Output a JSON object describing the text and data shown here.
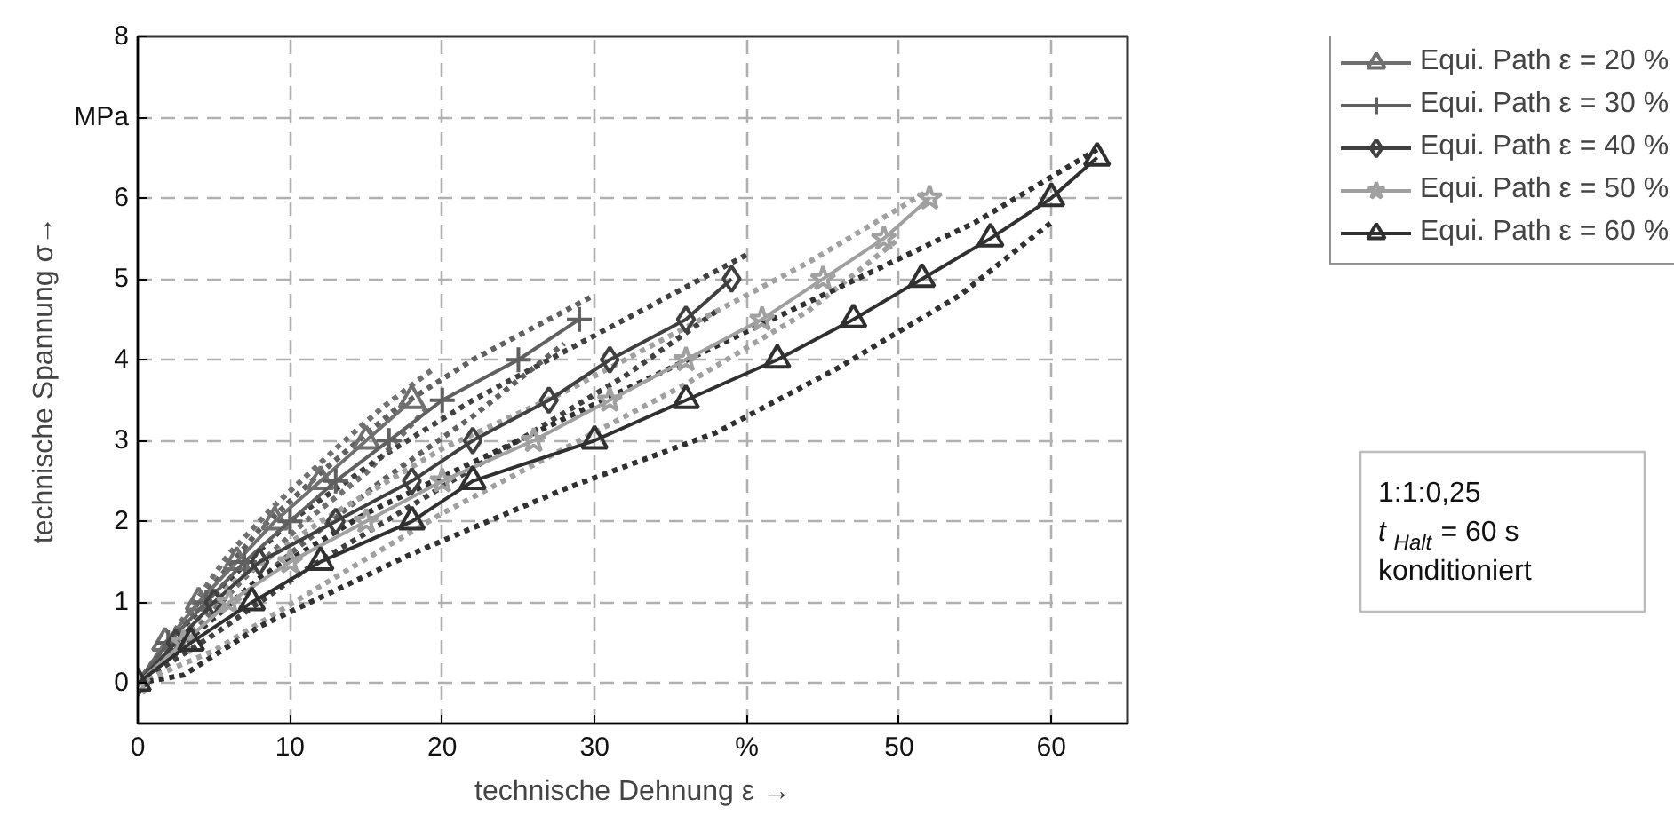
{
  "chart_data": {
    "type": "line",
    "xlabel": "technische Dehnung ε →",
    "ylabel": "technische Spannung σ→",
    "xlim": [
      0,
      65
    ],
    "ylim": [
      -0.5,
      8
    ],
    "xticks": [
      0,
      10,
      20,
      30,
      {
        "value": 40,
        "label": "%"
      },
      50,
      60
    ],
    "yticks": [
      0,
      1,
      2,
      3,
      4,
      5,
      6,
      {
        "value": 7,
        "label": "MPa"
      },
      8
    ],
    "grid": true,
    "legend": "top right",
    "annotations": [
      "1:1:0,25",
      "t$_{Halt}$ = 60 s",
      "konditioniert"
    ],
    "series": [
      {
        "color": "#707070",
        "line_style": "dotted",
        "marker": "none",
        "x": [
          0,
          3,
          6,
          9,
          13,
          16,
          19.5
        ],
        "values": [
          0,
          0.8,
          1.6,
          2.2,
          2.9,
          3.4,
          3.9
        ]
      },
      {
        "color": "#707070",
        "line_style": "dotted",
        "marker": "none",
        "x": [
          0,
          4,
          7,
          11,
          15,
          19
        ],
        "values": [
          0,
          0.7,
          1.3,
          2,
          2.6,
          3.4
        ]
      },
      {
        "color": "#606060",
        "line_style": "dotted",
        "marker": "none",
        "x": [
          0,
          4,
          8,
          12,
          17,
          22,
          27,
          30
        ],
        "values": [
          0,
          1,
          1.9,
          2.6,
          3.4,
          4,
          4.5,
          4.8
        ]
      },
      {
        "color": "#606060",
        "line_style": "dotted",
        "marker": "none",
        "x": [
          0,
          5,
          10,
          16,
          22,
          28
        ],
        "values": [
          0,
          0.8,
          1.6,
          2.5,
          3.3,
          4.2
        ]
      },
      {
        "color": "#404040",
        "line_style": "dotted",
        "marker": "none",
        "x": [
          0,
          5,
          10,
          16,
          22,
          29,
          35,
          40
        ],
        "values": [
          0,
          1.1,
          2,
          2.8,
          3.5,
          4.2,
          4.8,
          5.3
        ]
      },
      {
        "color": "#404040",
        "line_style": "dotted",
        "marker": "none",
        "x": [
          0,
          5,
          11,
          18,
          25,
          32,
          38
        ],
        "values": [
          0,
          0.6,
          1.4,
          2.2,
          3,
          3.8,
          4.6
        ]
      },
      {
        "color": "#a0a0a0",
        "line_style": "dotted",
        "marker": "none",
        "x": [
          0,
          6,
          12,
          20,
          28,
          36,
          44,
          52
        ],
        "values": [
          0,
          1.2,
          2,
          2.9,
          3.6,
          4.4,
          5.2,
          6.1
        ]
      },
      {
        "color": "#a0a0a0",
        "line_style": "dotted",
        "marker": "none",
        "x": [
          0,
          5,
          12,
          20,
          28,
          36,
          44,
          50
        ],
        "values": [
          0,
          0.4,
          1.2,
          2.1,
          2.9,
          3.7,
          4.6,
          5.5
        ]
      },
      {
        "color": "#303030",
        "line_style": "dotted",
        "marker": "none",
        "x": [
          0,
          8,
          15,
          25,
          35,
          45,
          55,
          63
        ],
        "values": [
          0,
          1.3,
          2.1,
          3,
          3.9,
          4.8,
          5.7,
          6.6
        ]
      },
      {
        "color": "#303030",
        "line_style": "dotted",
        "marker": "none",
        "x": [
          0,
          3,
          8,
          18,
          28,
          38,
          46,
          54,
          60
        ],
        "values": [
          0,
          0.1,
          0.7,
          1.6,
          2.4,
          3.1,
          3.9,
          4.8,
          5.7
        ]
      },
      {
        "name": "Equi. Path ε = 20 %",
        "color": "#707070",
        "line_style": "solid",
        "marker": "triangle",
        "x": [
          0,
          1.8,
          4,
          6.5,
          9,
          12,
          15,
          18
        ],
        "values": [
          0,
          0.5,
          1,
          1.5,
          2,
          2.5,
          3,
          3.5
        ]
      },
      {
        "name": "Equi. Path ε = 30 %",
        "color": "#606060",
        "line_style": "solid",
        "marker": "cross",
        "x": [
          0,
          2,
          4.5,
          7,
          10,
          13,
          16.5,
          20,
          25,
          29
        ],
        "values": [
          0,
          0.5,
          1,
          1.5,
          2,
          2.5,
          3,
          3.5,
          4,
          4.5
        ]
      },
      {
        "name": "Equi. Path ε = 40 %",
        "color": "#404040",
        "line_style": "solid",
        "marker": "diamond",
        "x": [
          0,
          2.5,
          5,
          8,
          13,
          18,
          22,
          27,
          31,
          36,
          39
        ],
        "values": [
          0,
          0.5,
          1,
          1.5,
          2,
          2.5,
          3,
          3.5,
          4,
          4.5,
          5
        ]
      },
      {
        "name": "Equi. Path ε = 50 %",
        "color": "#a0a0a0",
        "line_style": "solid",
        "marker": "star",
        "x": [
          0,
          3,
          6,
          10,
          15,
          20,
          26,
          31,
          36,
          41,
          45,
          49,
          52
        ],
        "values": [
          0,
          0.5,
          1,
          1.5,
          2,
          2.5,
          3,
          3.5,
          4,
          4.5,
          5,
          5.5,
          6
        ]
      },
      {
        "name": "Equi. Path ε = 60 %",
        "color": "#303030",
        "line_style": "solid",
        "marker": "triangle",
        "x": [
          0,
          3.5,
          7.5,
          12,
          18,
          22,
          30,
          36,
          42,
          47,
          51.5,
          56,
          60,
          63
        ],
        "values": [
          0,
          0.5,
          1,
          1.5,
          2,
          2.5,
          3,
          3.5,
          4,
          4.5,
          5,
          5.5,
          6,
          6.5
        ]
      }
    ]
  }
}
